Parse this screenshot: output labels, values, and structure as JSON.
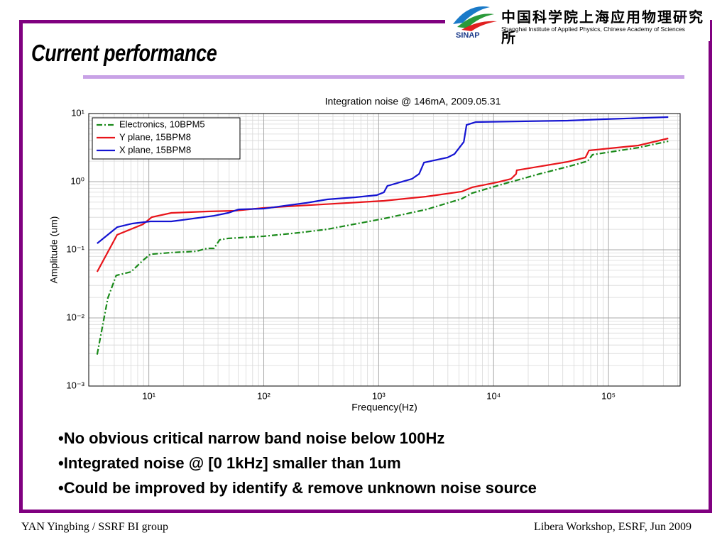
{
  "slide": {
    "title": "Current performance",
    "logo_acronym": "SINAP",
    "institute_cn": "中国科学院上海应用物理研究所",
    "institute_en": "Shanghai Institute of Applied Physics, Chinese Academy of Sciences",
    "bullets": [
      "•No obvious critical narrow band noise below 100Hz",
      "•Integrated noise @ [0 1kHz] smaller than 1um",
      "•Could be improved by identify & remove unknown noise source"
    ],
    "footer_left": "YAN Yingbing / SSRF BI group",
    "footer_right": "Libera Workshop, ESRF, Jun 2009"
  },
  "chart_data": {
    "type": "line",
    "title": "Integration noise @ 146mA, 2009.05.31",
    "x_label": "Frequency(Hz)",
    "y_label": "Amplitude (um)",
    "log_x": true,
    "log_y": true,
    "grid": true,
    "legend": "upper left",
    "xlim": [
      3,
      420000
    ],
    "ylim": [
      0.001,
      10
    ],
    "xticks": [
      {
        "value": 10,
        "label": "10¹"
      },
      {
        "value": 100,
        "label": "10²"
      },
      {
        "value": 1000,
        "label": "10³"
      },
      {
        "value": 10000,
        "label": "10⁴"
      },
      {
        "value": 100000,
        "label": "10⁵"
      }
    ],
    "yticks": [
      {
        "value": 0.001,
        "label": "10⁻³"
      },
      {
        "value": 0.01,
        "label": "10⁻²"
      },
      {
        "value": 0.1,
        "label": "10⁻¹"
      },
      {
        "value": 1,
        "label": "10⁰"
      },
      {
        "value": 10,
        "label": "10¹"
      }
    ],
    "series": [
      {
        "name": "Electronics, 10BPM5",
        "color": "#1a8a1a",
        "linestyle": "-.",
        "x": [
          3.55,
          4.4,
          5.2,
          7.0,
          8.9,
          10.3,
          15.7,
          25.9,
          32,
          36.9,
          41.3,
          49,
          100,
          202,
          356,
          1110,
          2590,
          5270,
          6520,
          10700,
          25100,
          44200,
          65800,
          72600,
          182000,
          331000
        ],
        "values": [
          0.0029,
          0.0196,
          0.042,
          0.0475,
          0.07,
          0.086,
          0.091,
          0.095,
          0.105,
          0.105,
          0.14,
          0.147,
          0.158,
          0.178,
          0.2,
          0.287,
          0.39,
          0.56,
          0.68,
          0.87,
          1.3,
          1.66,
          2.0,
          2.49,
          3.16,
          3.92
        ]
      },
      {
        "name": "Y plane, 15BPM8",
        "color": "#e8141a",
        "linestyle": "-",
        "x": [
          3.55,
          5.3,
          8.9,
          10.6,
          15.7,
          32,
          56,
          100,
          202,
          410,
          1110,
          1950,
          2590,
          5270,
          6520,
          10700,
          14200,
          15700,
          15900,
          44200,
          63000,
          67600,
          182000,
          331000
        ],
        "values": [
          0.0475,
          0.166,
          0.237,
          0.301,
          0.348,
          0.365,
          0.374,
          0.412,
          0.443,
          0.475,
          0.523,
          0.576,
          0.604,
          0.715,
          0.826,
          0.977,
          1.1,
          1.3,
          1.47,
          1.96,
          2.26,
          2.87,
          3.4,
          4.32
        ]
      },
      {
        "name": "X plane, 15BPM8",
        "color": "#1414d2",
        "linestyle": "-",
        "x": [
          3.55,
          5.3,
          7.2,
          10.3,
          15.7,
          24.1,
          36.9,
          49,
          60.5,
          100,
          152,
          233,
          356,
          628,
          961,
          1110,
          1190,
          1950,
          2250,
          2480,
          3970,
          4570,
          5500,
          5820,
          7000,
          44200,
          89800,
          331000
        ],
        "values": [
          0.124,
          0.215,
          0.243,
          0.261,
          0.261,
          0.287,
          0.316,
          0.348,
          0.392,
          0.402,
          0.443,
          0.487,
          0.549,
          0.59,
          0.634,
          0.698,
          0.866,
          1.1,
          1.3,
          1.91,
          2.26,
          2.55,
          3.83,
          6.81,
          7.5,
          7.87,
          8.25,
          8.87
        ]
      }
    ]
  }
}
